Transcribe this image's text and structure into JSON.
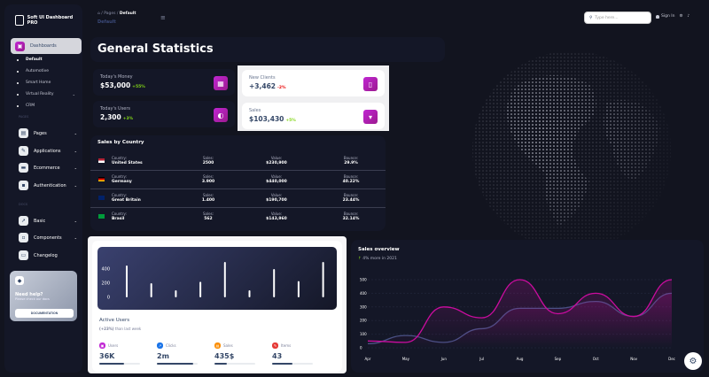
{
  "brand": "Soft UI Dashboard PRO",
  "breadcrumb": {
    "home_icon": "home-icon",
    "items": [
      "Pages",
      "Default"
    ],
    "title": "Default"
  },
  "search": {
    "placeholder": "Type here..."
  },
  "header": {
    "signin": "Sign In"
  },
  "sidebar": {
    "active": "Dashboards",
    "sub_items": [
      {
        "label": "Default",
        "active": true
      },
      {
        "label": "Automotive"
      },
      {
        "label": "Smart Home"
      },
      {
        "label": "Virtual Reality",
        "chevron": true
      },
      {
        "label": "CRM"
      }
    ],
    "section_pages": "PAGES",
    "pages": [
      {
        "label": "Pages",
        "icon": "image-icon"
      },
      {
        "label": "Applications",
        "icon": "tools-icon"
      },
      {
        "label": "Ecommerce",
        "icon": "basket-icon"
      },
      {
        "label": "Authentication",
        "icon": "lock-icon"
      }
    ],
    "section_docs": "DOCS",
    "docs": [
      {
        "label": "Basic",
        "icon": "rocket-icon",
        "chevron": true
      },
      {
        "label": "Components",
        "icon": "box-icon",
        "chevron": true
      },
      {
        "label": "Changelog",
        "icon": "credit-card-icon"
      }
    ],
    "help": {
      "title": "Need help?",
      "text": "Please check our docs",
      "button": "DOCUMENTATION"
    }
  },
  "page_title": "General Statistics",
  "stats": [
    {
      "label": "Today's Money",
      "value": "$53,000",
      "change": "+55%",
      "positive": true,
      "icon": "money-icon"
    },
    {
      "label": "Today's Users",
      "value": "2,300",
      "change": "+3%",
      "positive": true,
      "icon": "globe-icon"
    },
    {
      "label": "New Clients",
      "value": "+3,462",
      "change": "-2%",
      "positive": false,
      "icon": "document-icon"
    },
    {
      "label": "Sales",
      "value": "$103,430",
      "change": "+5%",
      "positive": true,
      "icon": "cart-icon"
    }
  ],
  "sales_by_country": {
    "title": "Sales by Country",
    "labels": {
      "country": "Country:",
      "sales": "Sales:",
      "value": "Value:",
      "bounce": "Bounce:"
    },
    "rows": [
      {
        "country": "United States",
        "sales": "2500",
        "value": "$230,900",
        "bounce": "29.9%",
        "flag": "us"
      },
      {
        "country": "Germany",
        "sales": "3.900",
        "value": "$440,000",
        "bounce": "40.22%",
        "flag": "de"
      },
      {
        "country": "Great Britain",
        "sales": "1.400",
        "value": "$190,700",
        "bounce": "23.44%",
        "flag": "gb"
      },
      {
        "country": "Brasil",
        "sales": "562",
        "value": "$143,960",
        "bounce": "32.14%",
        "flag": "br"
      }
    ]
  },
  "active_users": {
    "title": "Active Users",
    "change": "(+23%)",
    "subtitle": "than last week",
    "metrics": [
      {
        "label": "Users",
        "value": "36K",
        "progress": 60,
        "color": "#c026d3"
      },
      {
        "label": "Clicks",
        "value": "2m",
        "progress": 90,
        "color": "#1a73e8"
      },
      {
        "label": "Sales",
        "value": "435$",
        "progress": 30,
        "color": "#fb8c00"
      },
      {
        "label": "Items",
        "value": "43",
        "progress": 50,
        "color": "#e53935"
      }
    ]
  },
  "chart_data": [
    {
      "type": "bar",
      "yticks": [
        "400",
        "200",
        "0"
      ],
      "ylim": [
        0,
        500
      ],
      "values": [
        450,
        200,
        100,
        220,
        500,
        100,
        400,
        230,
        500
      ]
    },
    {
      "type": "line",
      "title": "Sales overview",
      "subtitle": "4% more in 2021",
      "categories": [
        "Apr",
        "May",
        "Jun",
        "Jul",
        "Aug",
        "Sep",
        "Oct",
        "Nov",
        "Dec"
      ],
      "yticks": [
        "500",
        "400",
        "300",
        "200",
        "100",
        "0"
      ],
      "ylim": [
        0,
        500
      ],
      "series": [
        {
          "values": [
            50,
            40,
            300,
            220,
            500,
            250,
            400,
            230,
            500
          ],
          "color": "#cb0c9f"
        },
        {
          "values": [
            30,
            90,
            40,
            140,
            290,
            290,
            340,
            230,
            400
          ],
          "color": "#3a416f"
        }
      ]
    }
  ]
}
